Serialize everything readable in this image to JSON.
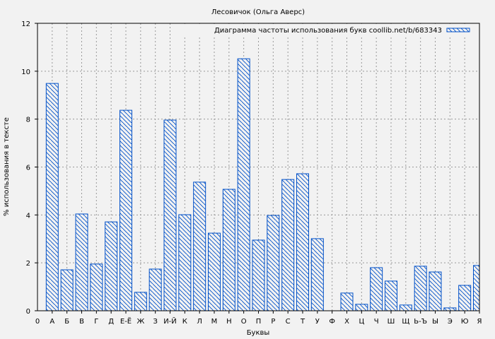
{
  "chart_data": {
    "type": "bar",
    "title": "Лесовичок (Ольга Аверс)",
    "xlabel": "Буквы",
    "ylabel": "% использования в тексте",
    "x_origin_label": "0",
    "categories": [
      "А",
      "Б",
      "В",
      "Г",
      "Д",
      "Е-Ё",
      "Ж",
      "З",
      "И-Й",
      "К",
      "Л",
      "М",
      "Н",
      "О",
      "П",
      "Р",
      "С",
      "Т",
      "У",
      "Ф",
      "Х",
      "Ц",
      "Ч",
      "Ш",
      "Щ",
      "Ь-Ъ",
      "Ы",
      "Э",
      "Ю",
      "Я"
    ],
    "values": [
      9.49,
      1.71,
      4.04,
      1.95,
      3.71,
      8.37,
      0.77,
      1.74,
      7.96,
      4.01,
      5.37,
      3.24,
      5.07,
      10.52,
      2.95,
      3.98,
      5.48,
      5.72,
      3.01,
      0.0,
      0.74,
      0.27,
      1.8,
      1.24,
      0.24,
      1.86,
      1.62,
      0.12,
      1.06,
      1.89
    ],
    "ylim": [
      0,
      12
    ],
    "yticks": [
      0,
      2,
      4,
      6,
      8,
      10,
      12
    ],
    "grid": true,
    "legend": {
      "label": "Диаграмма частоты использования букв coollib.net/b/683343",
      "placement": "top-right"
    },
    "bar_color": "#0050c8"
  }
}
